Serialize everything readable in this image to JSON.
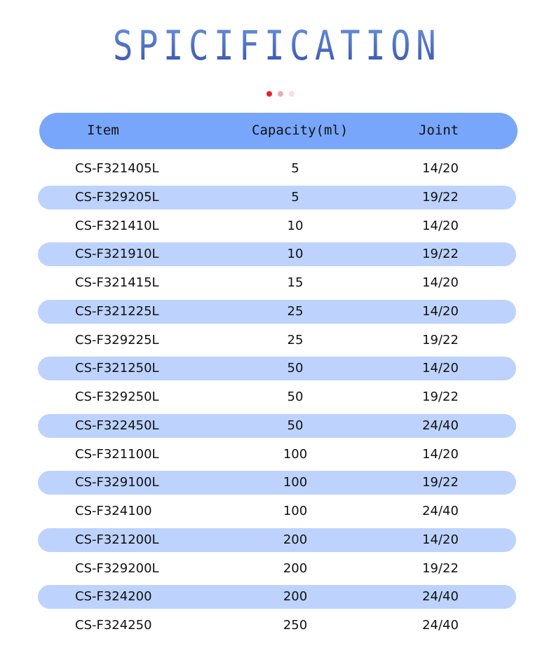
{
  "title": "SPICIFICATION",
  "dot_colors": [
    "#e3262b",
    "#eeaaaf",
    "#f8dfe1"
  ],
  "colors": {
    "header_bg": "#78a6fb",
    "stripe_bg": "#bdd3fd"
  },
  "table": {
    "headers": [
      "Item",
      "Capacity(ml)",
      "Joint"
    ],
    "rows": [
      [
        "CS-F321405L",
        "5",
        "14/20"
      ],
      [
        "CS-F329205L",
        "5",
        "19/22"
      ],
      [
        "CS-F321410L",
        "10",
        "14/20"
      ],
      [
        "CS-F321910L",
        "10",
        "19/22"
      ],
      [
        "CS-F321415L",
        "15",
        "14/20"
      ],
      [
        "CS-F321225L",
        "25",
        "14/20"
      ],
      [
        "CS-F329225L",
        "25",
        "19/22"
      ],
      [
        "CS-F321250L",
        "50",
        "14/20"
      ],
      [
        "CS-F329250L",
        "50",
        "19/22"
      ],
      [
        "CS-F322450L",
        "50",
        "24/40"
      ],
      [
        "CS-F321100L",
        "100",
        "14/20"
      ],
      [
        "CS-F329100L",
        "100",
        "19/22"
      ],
      [
        "CS-F324100",
        "100",
        "24/40"
      ],
      [
        "CS-F321200L",
        "200",
        "14/20"
      ],
      [
        "CS-F329200L",
        "200",
        "19/22"
      ],
      [
        "CS-F324200",
        "200",
        "24/40"
      ],
      [
        "CS-F324250",
        "250",
        "24/40"
      ]
    ]
  }
}
